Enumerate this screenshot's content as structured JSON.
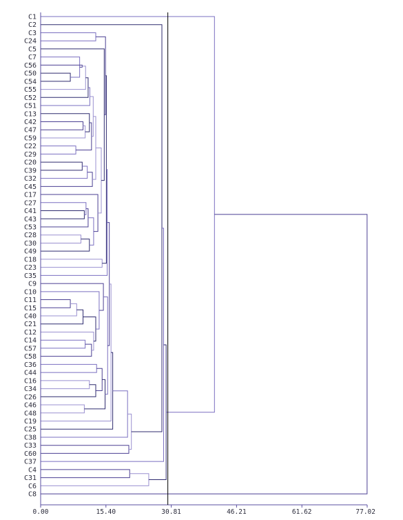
{
  "chart_data": {
    "type": "dendrogram",
    "orientation": "left-to-right",
    "x_axis": {
      "ticks": [
        "0.00",
        "15.40",
        "30.81",
        "46.21",
        "61.62",
        "77.02"
      ],
      "xlim": [
        0,
        77.02
      ]
    },
    "cut_height": 30.0,
    "leaves": [
      "C1",
      "C2",
      "C3",
      "C24",
      "C5",
      "C7",
      "C56",
      "C50",
      "C54",
      "C55",
      "C52",
      "C51",
      "C13",
      "C42",
      "C47",
      "C59",
      "C22",
      "C29",
      "C20",
      "C39",
      "C32",
      "C45",
      "C17",
      "C27",
      "C41",
      "C43",
      "C53",
      "C28",
      "C30",
      "C49",
      "C18",
      "C23",
      "C35",
      "C9",
      "C10",
      "C11",
      "C15",
      "C40",
      "C21",
      "C12",
      "C14",
      "C57",
      "C58",
      "C36",
      "C44",
      "C16",
      "C34",
      "C26",
      "C46",
      "C48",
      "C19",
      "C25",
      "C38",
      "C33",
      "C60",
      "C37",
      "C4",
      "C31",
      "C6",
      "C8"
    ],
    "merges": [
      {
        "id": "m1",
        "children": [
          "C50",
          "C54"
        ],
        "height": 7.0
      },
      {
        "id": "m2",
        "children": [
          "C7",
          "m1"
        ],
        "height": 9.2
      },
      {
        "id": "m3",
        "children": [
          "C56",
          "m2"
        ],
        "height": 9.8
      },
      {
        "id": "m4",
        "children": [
          "C55",
          "m3"
        ],
        "height": 10.6
      },
      {
        "id": "m5",
        "children": [
          "C52",
          "m4"
        ],
        "height": 11.2
      },
      {
        "id": "m6",
        "children": [
          "C51",
          "m5"
        ],
        "height": 11.6
      },
      {
        "id": "m7",
        "children": [
          "C42",
          "C47"
        ],
        "height": 10.0
      },
      {
        "id": "m8",
        "children": [
          "m7",
          "C59"
        ],
        "height": 10.5
      },
      {
        "id": "m9",
        "children": [
          "C13",
          "m8"
        ],
        "height": 11.5
      },
      {
        "id": "m10",
        "children": [
          "C22",
          "C29"
        ],
        "height": 8.3
      },
      {
        "id": "m11",
        "children": [
          "m9",
          "m10"
        ],
        "height": 12.0
      },
      {
        "id": "m12",
        "children": [
          "m6",
          "m11"
        ],
        "height": 12.4
      },
      {
        "id": "m13",
        "children": [
          "C20",
          "C39"
        ],
        "height": 9.8
      },
      {
        "id": "m14",
        "children": [
          "m13",
          "C32"
        ],
        "height": 11.0
      },
      {
        "id": "m15",
        "children": [
          "m14",
          "C45"
        ],
        "height": 12.2
      },
      {
        "id": "m16",
        "children": [
          "m12",
          "m15"
        ],
        "height": 13.0
      },
      {
        "id": "m17",
        "children": [
          "C41",
          "C43"
        ],
        "height": 10.3
      },
      {
        "id": "m18",
        "children": [
          "C27",
          "m17"
        ],
        "height": 10.7
      },
      {
        "id": "m19",
        "children": [
          "m18",
          "C53"
        ],
        "height": 11.2
      },
      {
        "id": "m20",
        "children": [
          "C28",
          "C30"
        ],
        "height": 9.5
      },
      {
        "id": "m21",
        "children": [
          "m20",
          "C49"
        ],
        "height": 11.5
      },
      {
        "id": "m22",
        "children": [
          "m19",
          "m21"
        ],
        "height": 12.5
      },
      {
        "id": "m23",
        "children": [
          "C17",
          "m22"
        ],
        "height": 13.5
      },
      {
        "id": "m24",
        "children": [
          "m16",
          "m23"
        ],
        "height": 14.3
      },
      {
        "id": "m25",
        "children": [
          "C5",
          "m24"
        ],
        "height": 15.0
      },
      {
        "id": "m26",
        "children": [
          "C3",
          "C24"
        ],
        "height": 13.0
      },
      {
        "id": "m27",
        "children": [
          "m26",
          "m25"
        ],
        "height": 15.3
      },
      {
        "id": "m28",
        "children": [
          "C18",
          "C23"
        ],
        "height": 14.5
      },
      {
        "id": "m29",
        "children": [
          "m27",
          "m28"
        ],
        "height": 15.5
      },
      {
        "id": "m30",
        "children": [
          "m29",
          "C35"
        ],
        "height": 15.7
      },
      {
        "id": "m31",
        "children": [
          "C11",
          "C15"
        ],
        "height": 7.0
      },
      {
        "id": "m32",
        "children": [
          "m31",
          "C40"
        ],
        "height": 8.5
      },
      {
        "id": "m33",
        "children": [
          "m32",
          "C21"
        ],
        "height": 10.0
      },
      {
        "id": "m34",
        "children": [
          "C14",
          "C57"
        ],
        "height": 10.5
      },
      {
        "id": "m35",
        "children": [
          "m34",
          "C58"
        ],
        "height": 12.0
      },
      {
        "id": "m36",
        "children": [
          "C12",
          "m35"
        ],
        "height": 12.5
      },
      {
        "id": "m37",
        "children": [
          "m33",
          "m36"
        ],
        "height": 13.0
      },
      {
        "id": "m38",
        "children": [
          "C10",
          "m37"
        ],
        "height": 13.8
      },
      {
        "id": "m39",
        "children": [
          "C9",
          "m38"
        ],
        "height": 14.8
      },
      {
        "id": "m40",
        "children": [
          "C16",
          "C34"
        ],
        "height": 11.5
      },
      {
        "id": "m41",
        "children": [
          "m40",
          "C26"
        ],
        "height": 13.0
      },
      {
        "id": "m42",
        "children": [
          "C36",
          "C44"
        ],
        "height": 13.2
      },
      {
        "id": "m43",
        "children": [
          "m42",
          "m41"
        ],
        "height": 14.5
      },
      {
        "id": "m44",
        "children": [
          "C46",
          "C48"
        ],
        "height": 10.3
      },
      {
        "id": "m45",
        "children": [
          "m43",
          "m44"
        ],
        "height": 15.2
      },
      {
        "id": "m46",
        "children": [
          "m39",
          "m45"
        ],
        "height": 15.8
      },
      {
        "id": "m47",
        "children": [
          "m30",
          "m46"
        ],
        "height": 16.2
      },
      {
        "id": "m48",
        "children": [
          "m47",
          "C19"
        ],
        "height": 16.6
      },
      {
        "id": "m49",
        "children": [
          "m48",
          "C25"
        ],
        "height": 17.0
      },
      {
        "id": "m50",
        "children": [
          "m49",
          "C38"
        ],
        "height": 20.5
      },
      {
        "id": "m51",
        "children": [
          "C33",
          "C60"
        ],
        "height": 20.8
      },
      {
        "id": "m52",
        "children": [
          "m50",
          "m51"
        ],
        "height": 21.4
      },
      {
        "id": "m53",
        "children": [
          "C2",
          "m52"
        ],
        "height": 28.6
      },
      {
        "id": "m54",
        "children": [
          "m53",
          "C37"
        ],
        "height": 29.0
      },
      {
        "id": "m55",
        "children": [
          "C4",
          "C31"
        ],
        "height": 21.0
      },
      {
        "id": "m56",
        "children": [
          "m55",
          "C6"
        ],
        "height": 25.5
      },
      {
        "id": "m57",
        "children": [
          "m54",
          "m56"
        ],
        "height": 29.6
      },
      {
        "id": "m58",
        "children": [
          "C1",
          "m57"
        ],
        "height": 41.0
      },
      {
        "id": "m59",
        "children": [
          "m58",
          "C8"
        ],
        "height": 77.0
      }
    ]
  }
}
